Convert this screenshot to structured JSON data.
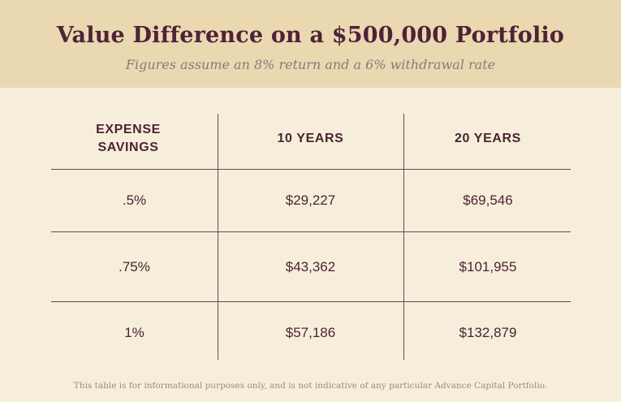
{
  "title": "Value Difference on a $500,000 Portfolio",
  "subtitle": "Figures assume an 8% return and a 6% withdrawal rate",
  "footnote": "This table is for informational purposes only, and is not indicative of any particular Advance Capital Portfolio.",
  "chart_data": {
    "type": "table",
    "columns": [
      "EXPENSE SAVINGS",
      "10 YEARS",
      "20 YEARS"
    ],
    "rows": [
      [
        ".5%",
        "$29,227",
        "$69,546"
      ],
      [
        ".75%",
        "$43,362",
        "$101,955"
      ],
      [
        "1%",
        "$57,186",
        "$132,879"
      ]
    ]
  }
}
